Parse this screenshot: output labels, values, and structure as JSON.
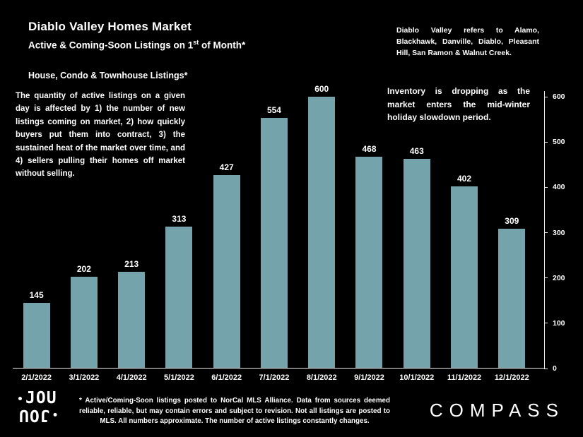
{
  "header": {
    "title": "Diablo Valley Homes Market",
    "subtitle_prefix": "Active & Coming-Soon Listings on 1",
    "subtitle_sup": "st",
    "subtitle_suffix": " of Month*",
    "region_note": "Diablo Valley refers to Alamo, Blackhawk, Danville, Diablo, Pleasant Hill, San Ramon & Walnut Creek."
  },
  "annotations": {
    "listings_label": "House, Condo & Townhouse Listings*",
    "left_paragraph": "The quantity of active listings on a given day is affected by 1) the number of new listings coming on market, 2) how quickly buyers put them into contract, 3) the sustained heat of the market over time, and 4) sellers pulling their homes off market without selling.",
    "right_note": "Inventory is dropping as the market enters the mid-winter holiday slowdown period."
  },
  "chart_data": {
    "type": "bar",
    "title": "Diablo Valley Homes Market — Active & Coming-Soon Listings on 1st of Month",
    "categories": [
      "2/1/2022",
      "3/1/2022",
      "4/1/2022",
      "5/1/2022",
      "6/1/2022",
      "7/1/2022",
      "8/1/2022",
      "9/1/2022",
      "10/1/2022",
      "11/1/2022",
      "12/1/2022"
    ],
    "values": [
      145,
      202,
      213,
      313,
      427,
      554,
      600,
      468,
      463,
      402,
      309
    ],
    "xlabel": "",
    "ylabel": "",
    "ylim": [
      0,
      600
    ],
    "yticks": [
      0,
      100,
      200,
      300,
      400,
      500,
      600
    ],
    "y_axis_position": "right",
    "grid": false,
    "legend": false,
    "value_labels": true,
    "bar_color": "#74a3ac",
    "axis_color": "#eaeaea",
    "background_color": "#000000",
    "text_color": "#ffffff"
  },
  "footer": {
    "footnote": "* Active/Coming-Soon listings posted to NorCal MLS Alliance.  Data from sources deemed reliable, reliable, but may contain errors and subject to revision.  Not all listings are posted to MLS. All numbers approximate. The number of active listings constantly changes.",
    "logo_text": "JOU",
    "brand": "COMPASS"
  }
}
